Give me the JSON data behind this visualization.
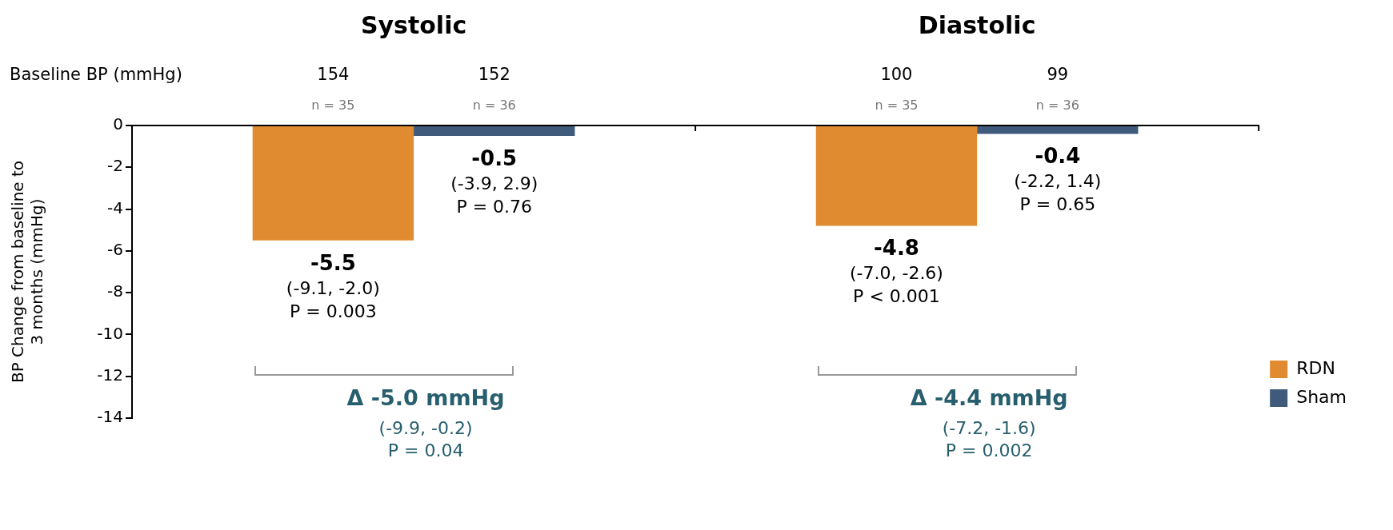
{
  "chart_data": {
    "type": "bar",
    "categories": [
      "Systolic",
      "Diastolic"
    ],
    "ylabel": "BP Change from baseline to 3 months (mmHg)",
    "ylim": [
      -14,
      0
    ],
    "yticks": [
      -14,
      -12,
      -10,
      -8,
      -6,
      -4,
      -2,
      0
    ],
    "grid": false,
    "legend": "bottom right",
    "series": [
      {
        "name": "RDN",
        "color": "#e08b30",
        "values": [
          -5.5,
          -4.8
        ],
        "value_labels": [
          "-5.5\n(-9.1, -2.0)\nP = 0.003",
          "-4.8\n(-7.0, -2.6)\nP < 0.001"
        ]
      },
      {
        "name": "Sham",
        "color": "#3f5a7a",
        "values": [
          -0.5,
          -0.4
        ],
        "value_labels": [
          "-0.5\n(-3.9, 2.9)\nP = 0.76",
          "-0.4\n(-2.2, 1.4)\nP = 0.65"
        ]
      }
    ],
    "annotations": [
      "Baseline BP (mmHg)",
      "154",
      "152",
      "100",
      "99",
      "n = 35",
      "n = 36",
      "n = 35",
      "n = 36",
      "Δ -5.0 mmHg",
      "(-9.9, -0.2)",
      "P = 0.04",
      "Δ -4.4 mmHg",
      "(-7.2, -1.6)",
      "P = 0.002"
    ]
  }
}
